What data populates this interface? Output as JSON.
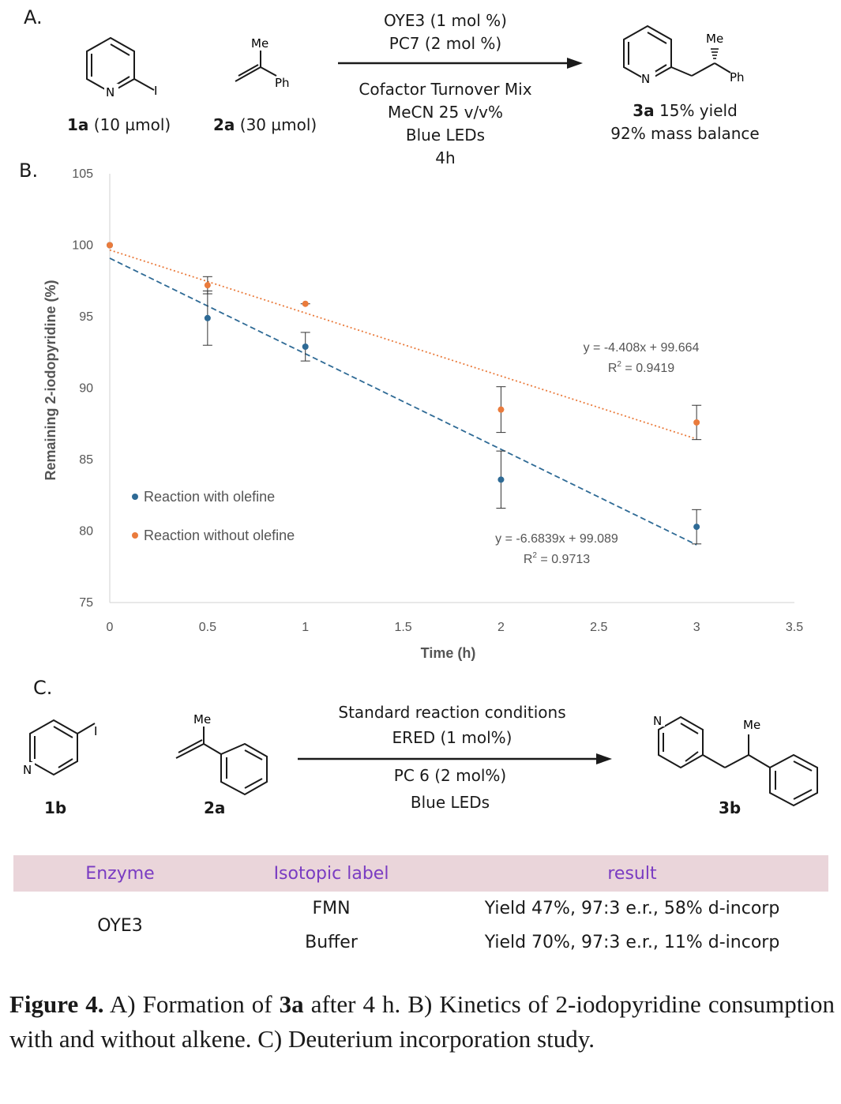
{
  "panelA": {
    "label": "A.",
    "reactant1": {
      "id": "1a",
      "amount": "(10 µmol)",
      "atom_n": "N",
      "atom_i": "I"
    },
    "reactant2": {
      "id": "2a",
      "amount": "(30 µmol)",
      "atom_me": "Me",
      "atom_ph": "Ph"
    },
    "above_arrow": [
      "OYE3 (1 mol %)",
      "PC7 (2 mol %)"
    ],
    "below_arrow": [
      "Cofactor Turnover Mix",
      "MeCN 25 v/v%",
      "Blue LEDs",
      "4h"
    ],
    "product": {
      "id": "3a",
      "yield": "15% yield",
      "mass_balance": "92% mass balance",
      "atom_n": "N",
      "atom_me": "Me",
      "atom_ph": "Ph"
    }
  },
  "panelB": {
    "label": "B."
  },
  "chart_data": {
    "type": "scatter",
    "xlabel": "Time (h)",
    "ylabel": "Remaining 2-iodopyridine (%)",
    "xlim": [
      0,
      3.5
    ],
    "ylim": [
      75,
      105
    ],
    "xticks": [
      "0",
      "0.5",
      "1",
      "1.5",
      "2",
      "2.5",
      "3",
      "3.5"
    ],
    "yticks": [
      "75",
      "80",
      "85",
      "90",
      "95",
      "100",
      "105"
    ],
    "grid": false,
    "legend_position": "lower-left",
    "series": [
      {
        "name": "Reaction with olefine",
        "color": "#2e6a95",
        "x": [
          0,
          0.5,
          1,
          2,
          3
        ],
        "y": [
          100,
          94.9,
          92.9,
          83.6,
          80.3
        ],
        "err": [
          0,
          1.9,
          1.0,
          2.0,
          1.2
        ],
        "trendline": {
          "slope": -6.6839,
          "intercept": 99.089,
          "style": "dashed",
          "equation": "y = -6.6839x + 99.089",
          "r2_label": "R",
          "r2_value": " = 0.9713"
        }
      },
      {
        "name": "Reaction without olefine",
        "color": "#ea7b3c",
        "x": [
          0,
          0.5,
          1,
          2,
          3
        ],
        "y": [
          100,
          97.2,
          95.9,
          88.5,
          87.6
        ],
        "err": [
          0,
          0.6,
          0.05,
          1.6,
          1.2
        ],
        "trendline": {
          "slope": -4.408,
          "intercept": 99.664,
          "style": "dotted",
          "equation": "y = -4.408x + 99.664",
          "r2_label": "R",
          "r2_value": " = 0.9419"
        }
      }
    ]
  },
  "panelC": {
    "label": "C.",
    "reactant1": {
      "id": "1b",
      "atom_n": "N",
      "atom_i": "I"
    },
    "reactant2": {
      "id": "2a",
      "atom_me": "Me"
    },
    "above_arrow": [
      "Standard reaction conditions",
      "ERED (1 mol%)"
    ],
    "below_arrow": [
      "PC 6 (2 mol%)",
      "Blue LEDs"
    ],
    "product": {
      "id": "3b",
      "atom_n": "N",
      "atom_me": "Me"
    }
  },
  "table": {
    "headers": [
      "Enzyme",
      "Isotopic label",
      "result"
    ],
    "enzyme": "OYE3",
    "rows": [
      {
        "label": "FMN",
        "result": "Yield 47%, 97:3 e.r., 58% d-incorp"
      },
      {
        "label": "Buffer",
        "result": "Yield 70%, 97:3 e.r., 11% d-incorp"
      }
    ]
  },
  "caption": {
    "lead": "Figure 4.",
    "part1": " A) Formation of ",
    "compound": "3a",
    "part2": " after 4 h. B) Kinetics of 2-iodopyridine consumption with and without alkene. C) Deuterium incorporation study."
  }
}
